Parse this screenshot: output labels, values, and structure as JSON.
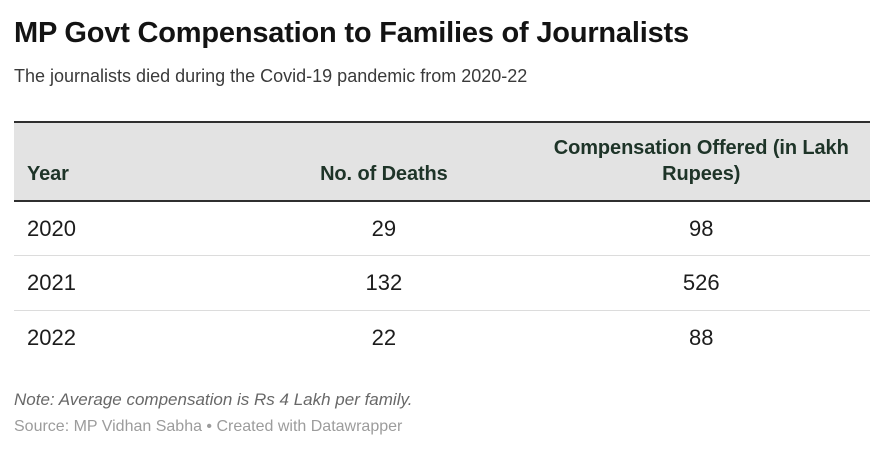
{
  "header": {
    "title": "MP Govt Compensation to Families of Journalists",
    "subtitle": "The journalists died during the Covid-19 pandemic from 2020-22"
  },
  "table": {
    "columns": {
      "year": "Year",
      "deaths": "No. of Deaths",
      "compensation": "Compensation Offered (in Lakh Rupees)"
    },
    "rows": [
      {
        "year": "2020",
        "deaths": "29",
        "compensation": "98"
      },
      {
        "year": "2021",
        "deaths": "132",
        "compensation": "526"
      },
      {
        "year": "2022",
        "deaths": "22",
        "compensation": "88"
      }
    ]
  },
  "footer": {
    "note": "Note: Average compensation is Rs 4 Lakh per family.",
    "source_text": "Source: MP Vidhan Sabha",
    "separator": " • ",
    "credit": "Created with Datawrapper"
  },
  "colors": {
    "header_row_bg": "#e3e3e3",
    "header_text": "#1e3428",
    "table_border_dark": "#2f2f2f",
    "row_divider": "#dcdcdc",
    "title_text": "#131313",
    "body_text": "#1c1c1c",
    "note_text": "#686868",
    "source_text": "#9c9c9c"
  },
  "chart_data": {
    "type": "table",
    "title": "MP Govt Compensation to Families of Journalists",
    "subtitle": "The journalists died during the Covid-19 pandemic from 2020-22",
    "columns": [
      "Year",
      "No. of Deaths",
      "Compensation Offered (in Lakh Rupees)"
    ],
    "rows": [
      [
        "2020",
        29,
        98
      ],
      [
        "2021",
        132,
        526
      ],
      [
        "2022",
        22,
        88
      ]
    ],
    "note": "Average compensation is Rs 4 Lakh per family.",
    "source": "MP Vidhan Sabha",
    "credit": "Created with Datawrapper"
  }
}
